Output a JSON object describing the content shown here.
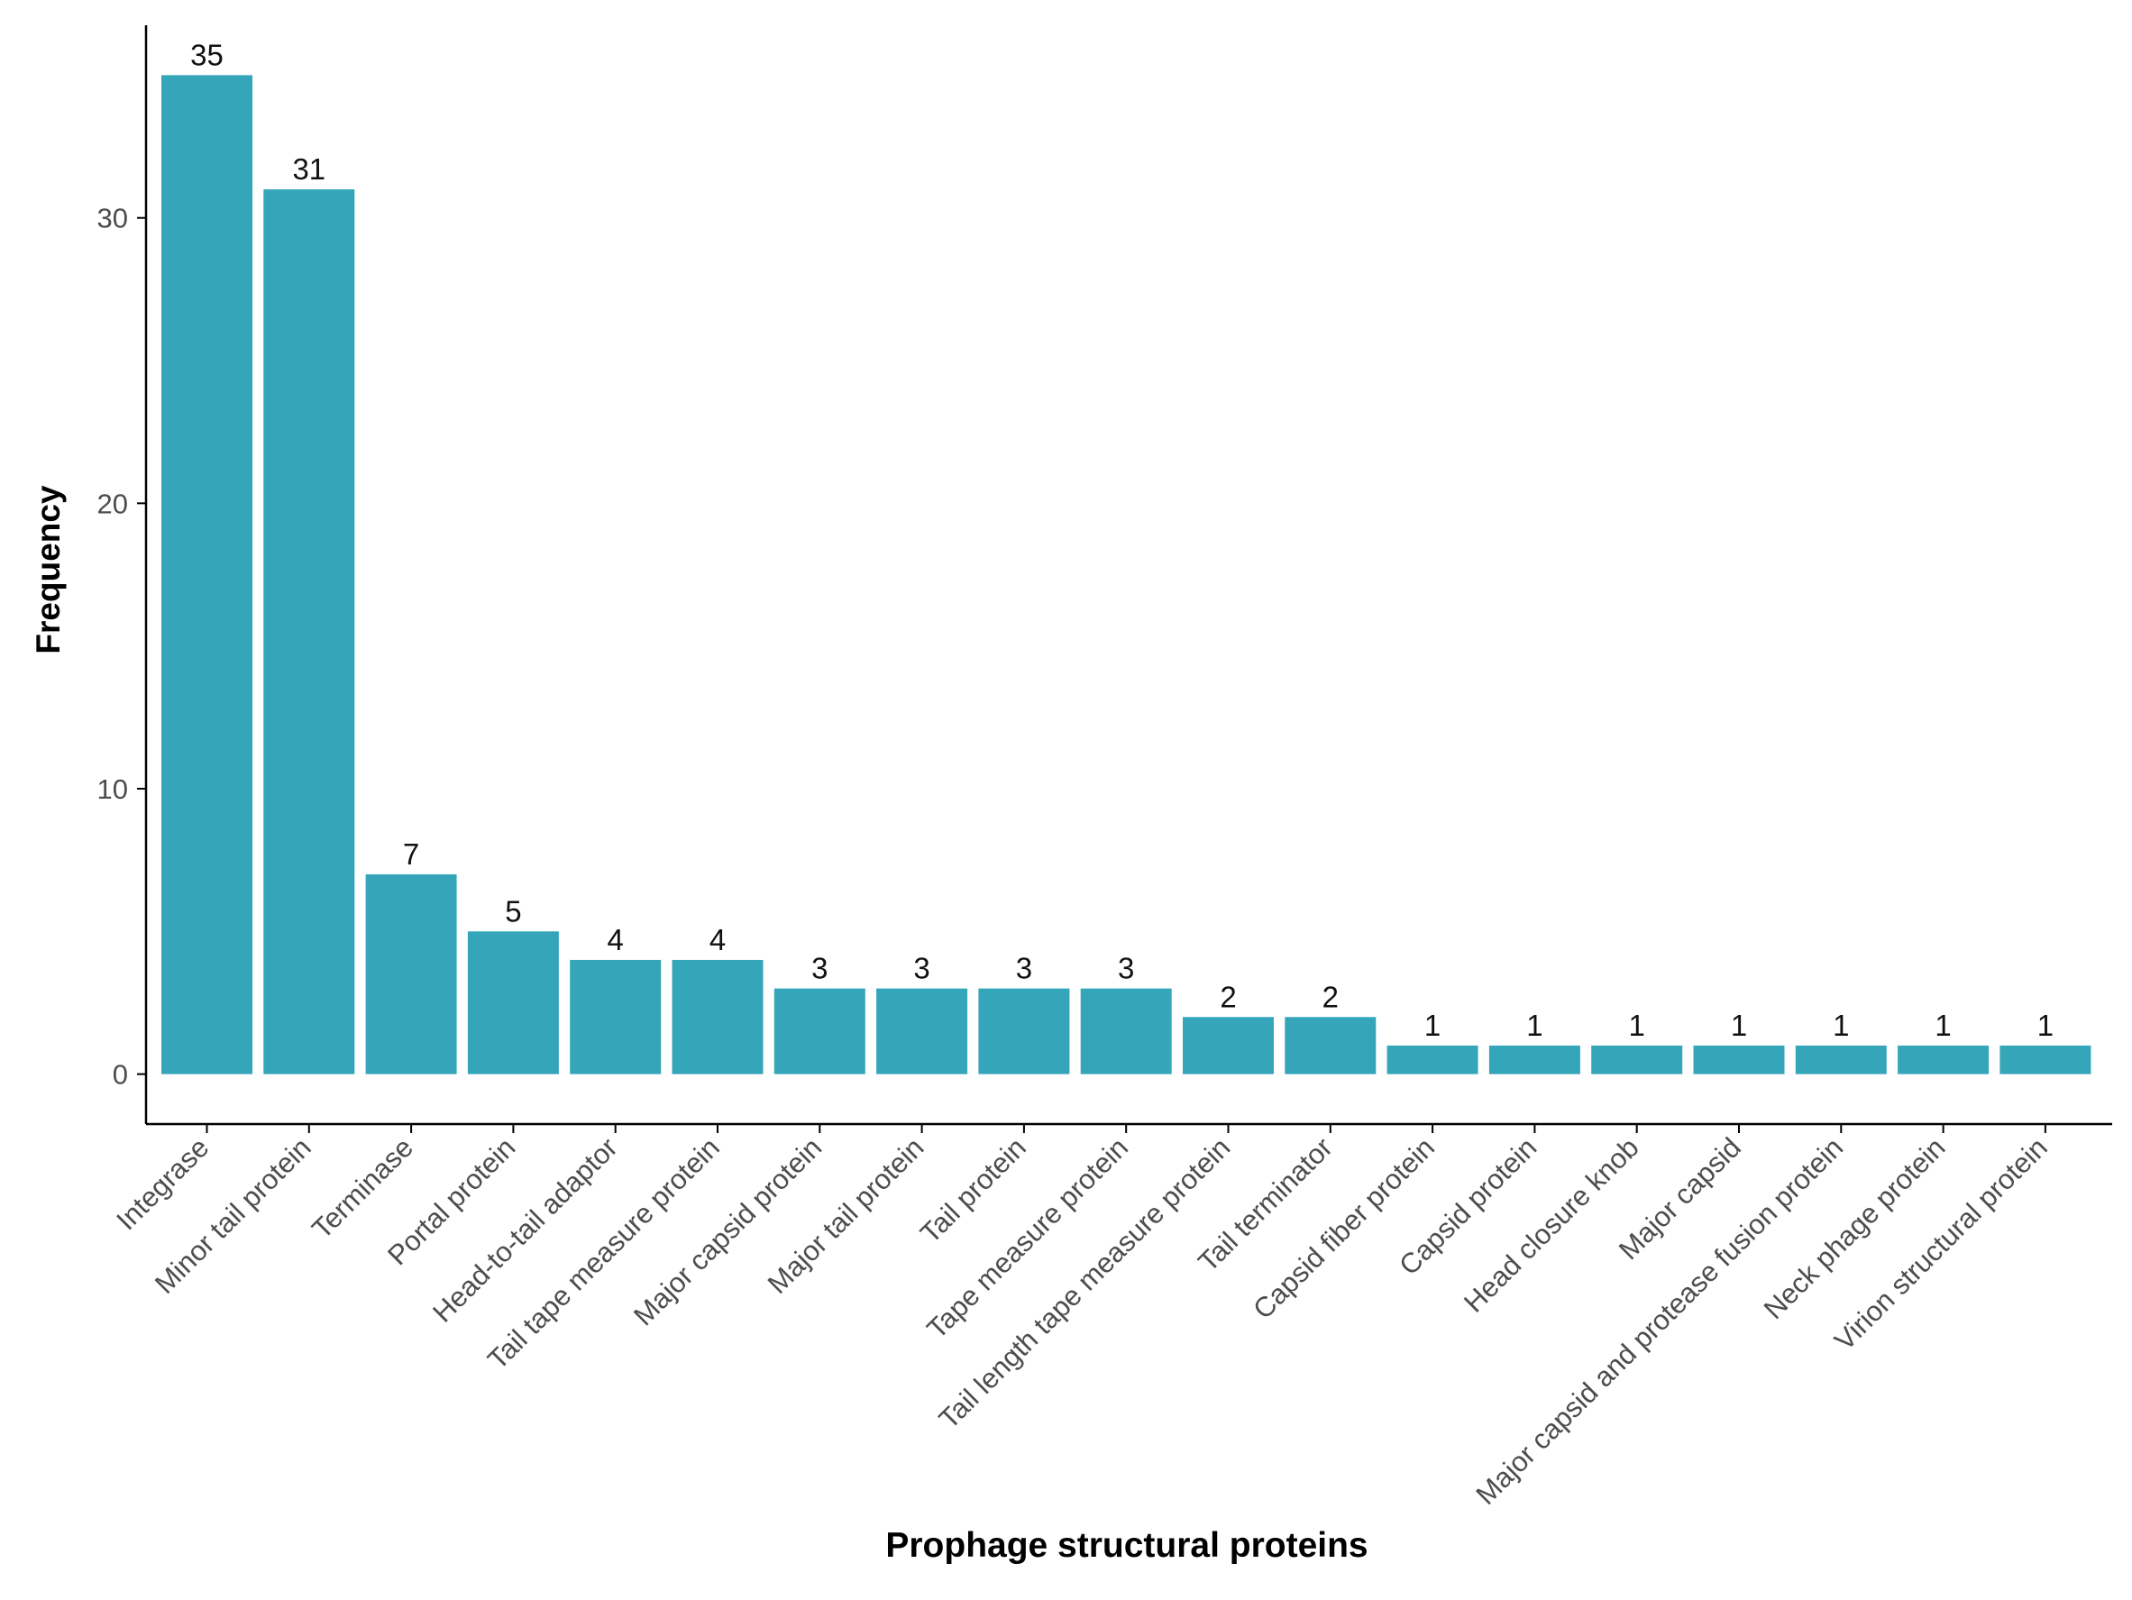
{
  "colors": {
    "bar": "#35a6b9",
    "axis": "#000000",
    "tick_text": "#4d4d4d",
    "label_text": "#111111",
    "background": "#ffffff"
  },
  "chart_data": {
    "type": "bar",
    "title": "",
    "xlabel": "Prophage structural proteins",
    "ylabel": "Frequency",
    "categories": [
      "Integrase",
      "Minor tail protein",
      "Terminase",
      "Portal protein",
      "Head-to-tail adaptor",
      "Tail tape measure protein",
      "Major capsid protein",
      "Major tail protein",
      "Tail protein",
      "Tape measure protein",
      "Tail length tape measure protein",
      "Tail terminator",
      "Capsid fiber protein",
      "Capsid protein",
      "Head closure knob",
      "Major capsid",
      "Major capsid and protease fusion protein",
      "Neck phage protein",
      "Virion structural protein"
    ],
    "values": [
      35,
      31,
      7,
      5,
      4,
      4,
      3,
      3,
      3,
      3,
      2,
      2,
      1,
      1,
      1,
      1,
      1,
      1,
      1
    ],
    "data_labels": [
      "35",
      "31",
      "7",
      "5",
      "4",
      "4",
      "3",
      "3",
      "3",
      "3",
      "2",
      "2",
      "1",
      "1",
      "1",
      "1",
      "1",
      "1",
      "1"
    ],
    "yticks": [
      0,
      10,
      20,
      30
    ],
    "ytick_labels": [
      "0",
      "10",
      "20",
      "30"
    ],
    "ylim": [
      -1.75,
      36.75
    ],
    "grid": false,
    "legend": "none",
    "x_tick_label_rotation": "45 degrees"
  }
}
